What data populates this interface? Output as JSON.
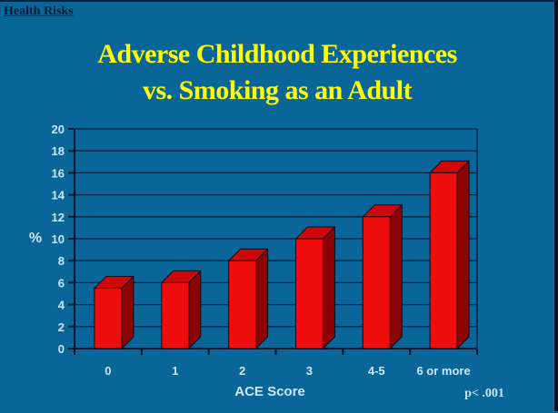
{
  "page": {
    "background": "#0A6598",
    "nav_link": "Health Risks"
  },
  "title": {
    "line1": "Adverse Childhood Experiences",
    "line2": "vs. Smoking as an Adult",
    "color": "#FFFF00"
  },
  "chart_data": {
    "type": "bar",
    "categories": [
      "0",
      "1",
      "2",
      "3",
      "4-5",
      "6 or more"
    ],
    "values": [
      5.5,
      6,
      8,
      10,
      12,
      16
    ],
    "title": "Adverse Childhood Experiences vs. Smoking as an Adult",
    "xlabel": "ACE Score",
    "ylabel": "%",
    "ylim": [
      0,
      20
    ],
    "yticks": [
      0,
      2,
      4,
      6,
      8,
      10,
      12,
      14,
      16,
      18,
      20
    ],
    "grid": true,
    "legend": "none",
    "annotation": "p< .001",
    "style": "3d-bars",
    "colors": {
      "bar_front": "#EE0D0D",
      "bar_top": "#CE0808",
      "bar_side": "#8C0303",
      "bar_outline": "#001020",
      "gridline": "#00213F",
      "axis": "#00132B",
      "tick_label": "#C9E8FA"
    }
  }
}
